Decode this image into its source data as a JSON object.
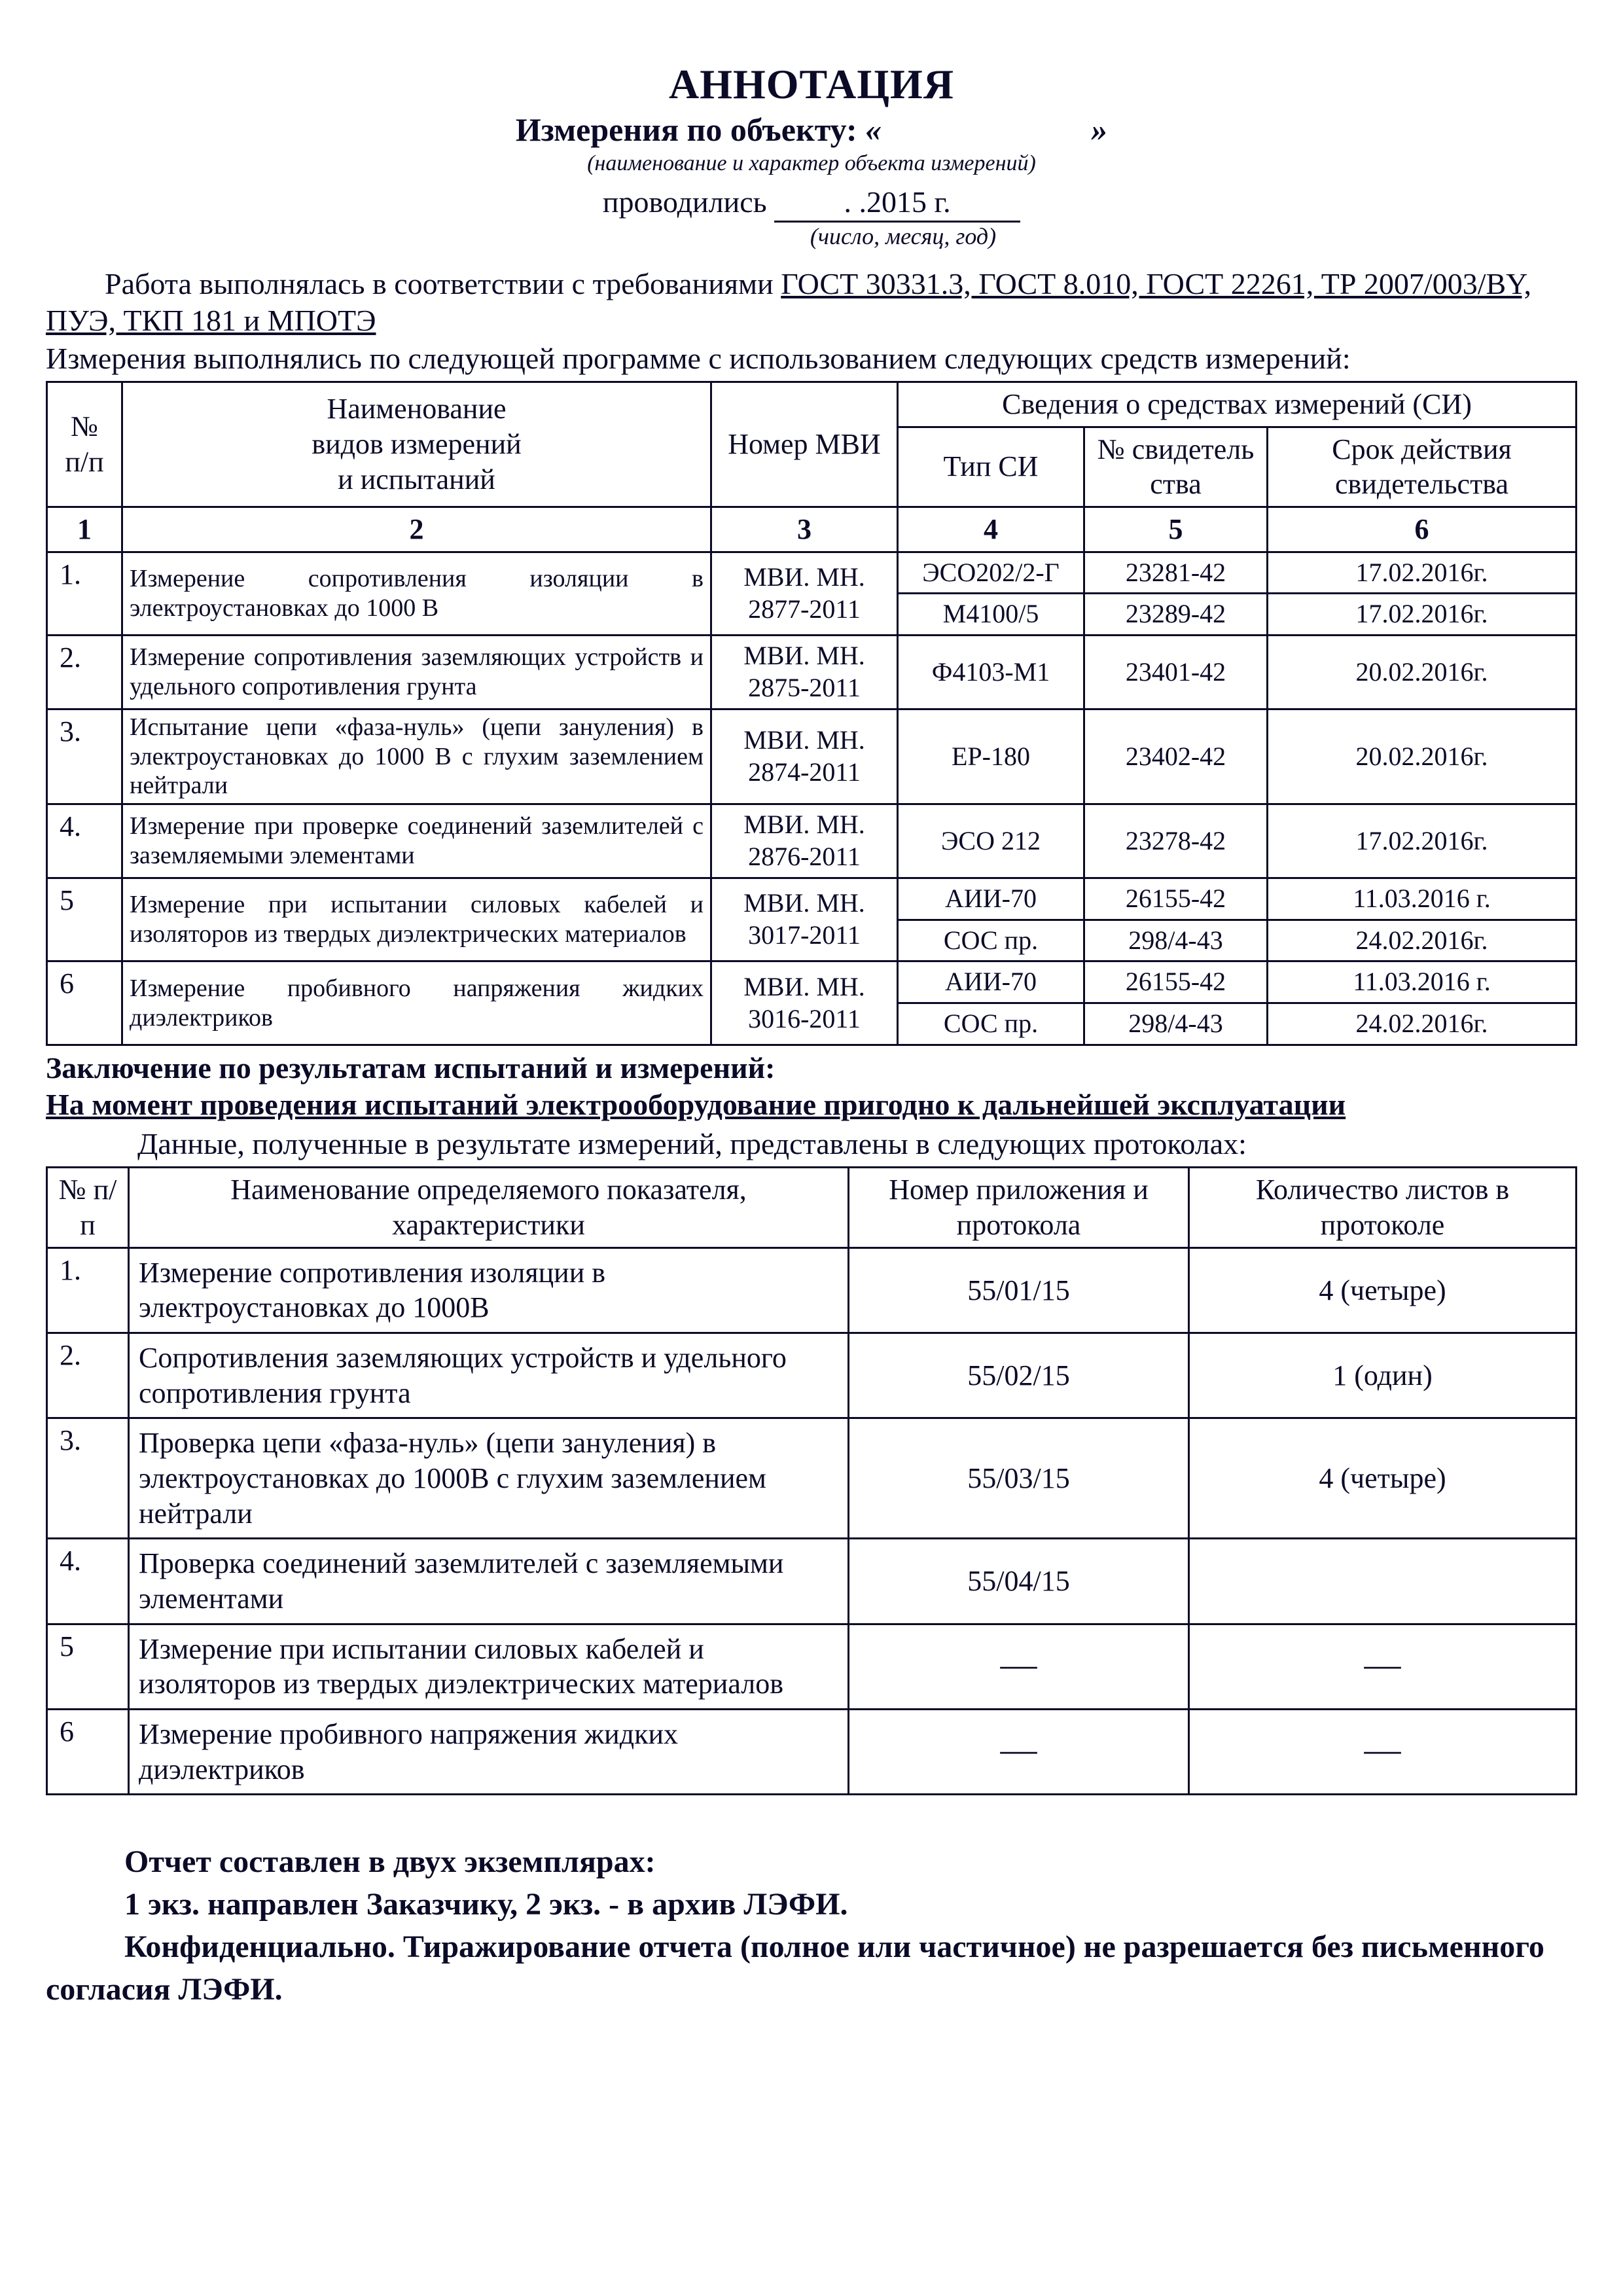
{
  "colors": {
    "text": "#0b0b28",
    "background": "#ffffff",
    "border": "#0b0b28"
  },
  "header": {
    "title": "АННОТАЦИЯ",
    "subtitle_prefix": "Измерения по объекту: ",
    "quote_open": "«",
    "quote_close": "»",
    "object_caption": "(наименование и характер объекта измерений)",
    "conducted_label": "проводились",
    "date_text": "  .    .2015 г.",
    "date_caption": "(число, месяц, год)"
  },
  "intro": {
    "line1_prefix": "Работа выполнялась в соответствии с требованиями ",
    "standards": "ГОСТ 30331.3, ГОСТ 8.010, ГОСТ 22261, ТР 2007/003/BY, ПУЭ, ТКП 181 и МПОТЭ",
    "line2": "Измерения выполнялись по следующей программе с использованием следующих средств измерений:"
  },
  "table1": {
    "head": {
      "num": "№ п/п",
      "name": "Наименование\nвидов измерений\nи испытаний",
      "mvi": "Номер МВИ",
      "si_title": "Сведения о средствах измерений (СИ)",
      "type": "Тип СИ",
      "cert_no": "№ свидетель ства",
      "cert_valid": "Срок действия свидетельства",
      "cols": [
        "1",
        "2",
        "3",
        "4",
        "5",
        "6"
      ]
    },
    "rows": [
      {
        "n": "1.",
        "desc": "Измерение сопротивления изоляции в электроустановках до 1000 В",
        "mvi": "МВИ. МН. 2877-2011",
        "si": [
          {
            "type": "ЭСО202/2-Г",
            "cert": "23281-42",
            "valid": "17.02.2016г."
          },
          {
            "type": "М4100/5",
            "cert": "23289-42",
            "valid": "17.02.2016г."
          }
        ]
      },
      {
        "n": "2.",
        "desc": "Измерение сопротивления заземляющих устройств и удельного сопротивления грунта",
        "mvi": "МВИ. МН. 2875-2011",
        "si": [
          {
            "type": "Ф4103-М1",
            "cert": "23401-42",
            "valid": "20.02.2016г."
          }
        ]
      },
      {
        "n": "3.",
        "desc": "Испытание цепи «фаза-нуль» (цепи зануления) в электроустановках до 1000 В с глухим заземлением нейтрали",
        "mvi": "МВИ. МН. 2874-2011",
        "si": [
          {
            "type": "ЕР-180",
            "cert": "23402-42",
            "valid": "20.02.2016г."
          }
        ]
      },
      {
        "n": "4.",
        "desc": "Измерение при проверке соединений заземлителей с заземляемыми элементами",
        "mvi": "МВИ. МН. 2876-2011",
        "si": [
          {
            "type": "ЭСО 212",
            "cert": "23278-42",
            "valid": "17.02.2016г."
          }
        ]
      },
      {
        "n": "5",
        "desc": "Измерение при испытании силовых кабелей и изоляторов из твердых диэлектрических материалов",
        "mvi": "МВИ. МН. 3017-2011",
        "si": [
          {
            "type": "АИИ-70",
            "cert": "26155-42",
            "valid": "11.03.2016 г."
          },
          {
            "type": "СОС пр.",
            "cert": "298/4-43",
            "valid": "24.02.2016г."
          }
        ]
      },
      {
        "n": "6",
        "desc": "Измерение пробивного напряжения жидких диэлектриков",
        "mvi": "МВИ. МН. 3016-2011",
        "si": [
          {
            "type": "АИИ-70",
            "cert": "26155-42",
            "valid": "11.03.2016 г."
          },
          {
            "type": "СОС пр.",
            "cert": "298/4-43",
            "valid": "24.02.2016г."
          }
        ]
      }
    ]
  },
  "conclusion": {
    "label": "Заключение по результатам испытаний и измерений:",
    "text": "На момент проведения испытаний электрооборудование пригодно к дальнейшей эксплуатации",
    "data_intro": "Данные, полученные в результате измерений, представлены в следующих протоколах:"
  },
  "table2": {
    "head": {
      "num": "№ п/п",
      "name": "Наименование определяемого показателя, характеристики",
      "app": "Номер приложения и протокола",
      "sheets": "Количество листов в протоколе"
    },
    "rows": [
      {
        "n": "1.",
        "desc": "Измерение сопротивления изоляции в электроустановках до 1000В",
        "app": "55/01/15",
        "sheets": "4 (четыре)"
      },
      {
        "n": "2.",
        "desc": "Сопротивления заземляющих устройств и удельного сопротивления грунта",
        "app": "55/02/15",
        "sheets": "1 (один)"
      },
      {
        "n": "3.",
        "desc": "Проверка цепи «фаза-нуль» (цепи зануления) в электроустановках до 1000В с глухим заземлением нейтрали",
        "app": "55/03/15",
        "sheets": "4 (четыре)"
      },
      {
        "n": "4.",
        "desc": "Проверка соединений заземлителей с заземляемыми элементами",
        "app": "55/04/15",
        "sheets": ""
      },
      {
        "n": "5",
        "desc": "Измерение при испытании силовых кабелей и изоляторов из твердых диэлектрических материалов",
        "app": "—",
        "sheets": "—"
      },
      {
        "n": "6",
        "desc": "Измерение пробивного напряжения жидких диэлектриков",
        "app": "—",
        "sheets": "—"
      }
    ]
  },
  "footer": {
    "l1": "Отчет составлен в двух экземплярах:",
    "l2": "1 экз. направлен Заказчику, 2 экз. - в архив ЛЭФИ.",
    "l3": "Конфиденциально. Тиражирование отчета (полное или частичное) не разрешается без письменного согласия ЛЭФИ."
  }
}
